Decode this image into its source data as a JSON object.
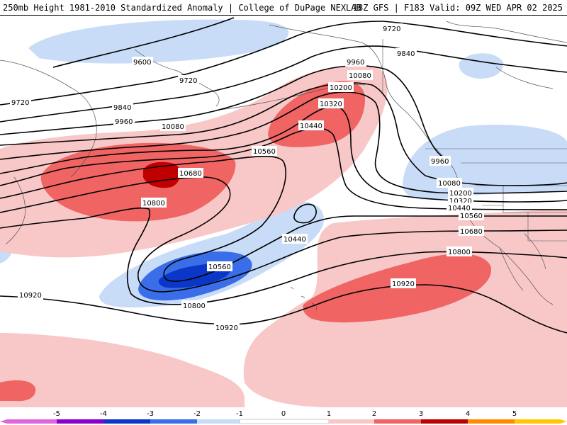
{
  "header": {
    "title_left": "250mb Height 1981-2010 Standardized Anomaly | College of DuPage NEXLAB",
    "title_right": "18Z GFS | F183 Valid: 09Z WED APR 02 2025"
  },
  "colors": {
    "m5": "#e066e0",
    "m4": "#8b00c8",
    "m3": "#0a37c8",
    "m2": "#3a6ee8",
    "m1": "#c8dcf8",
    "zero": "#ffffff",
    "p1": "#f8c8c8",
    "p2": "#f06464",
    "p3": "#c00000",
    "p4": "#ff8c00",
    "p5": "#ffc800",
    "contour": "#000000",
    "coast": "#555555"
  },
  "colorbar": {
    "ticks": [
      "-5",
      "-4",
      "-3",
      "-2",
      "-1",
      "0",
      "1",
      "2",
      "3",
      "4",
      "5"
    ]
  },
  "contours": [
    {
      "id": "c9600",
      "label": "9600"
    },
    {
      "id": "c9720a",
      "label": "9720"
    },
    {
      "id": "c9720b",
      "label": "9720"
    },
    {
      "id": "c9720c",
      "label": "9720"
    },
    {
      "id": "c9840a",
      "label": "9840"
    },
    {
      "id": "c9840b",
      "label": "9840"
    },
    {
      "id": "c9960a",
      "label": "9960"
    },
    {
      "id": "c9960b",
      "label": "9960"
    },
    {
      "id": "c9960c",
      "label": "9960"
    },
    {
      "id": "c10080a",
      "label": "10080"
    },
    {
      "id": "c10080b",
      "label": "10080"
    },
    {
      "id": "c10080c",
      "label": "10080"
    },
    {
      "id": "c10200a",
      "label": "10200"
    },
    {
      "id": "c10200b",
      "label": "10200"
    },
    {
      "id": "c10320a",
      "label": "10320"
    },
    {
      "id": "c10320b",
      "label": "10320"
    },
    {
      "id": "c10440a",
      "label": "10440"
    },
    {
      "id": "c10440b",
      "label": "10440"
    },
    {
      "id": "c10440c",
      "label": "10440"
    },
    {
      "id": "c10560a",
      "label": "10560"
    },
    {
      "id": "c10560b",
      "label": "10560"
    },
    {
      "id": "c10560c",
      "label": "10560"
    },
    {
      "id": "c10680a",
      "label": "10680"
    },
    {
      "id": "c10680b",
      "label": "10680"
    },
    {
      "id": "c10800a",
      "label": "10800"
    },
    {
      "id": "c10800b",
      "label": "10800"
    },
    {
      "id": "c10800c",
      "label": "10800"
    },
    {
      "id": "c10920a",
      "label": "10920"
    },
    {
      "id": "c10920b",
      "label": "10920"
    },
    {
      "id": "c10920c",
      "label": "10920"
    }
  ]
}
